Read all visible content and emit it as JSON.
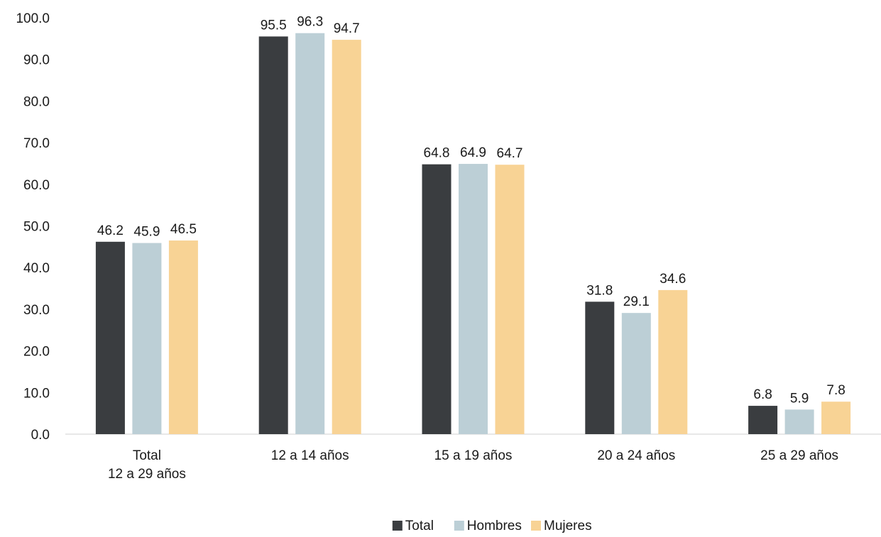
{
  "chart_data": {
    "type": "bar",
    "categories": [
      [
        "Total",
        "12 a 29 años"
      ],
      [
        "12 a 14 años"
      ],
      [
        "15 a 19 años"
      ],
      [
        "20 a 24 años"
      ],
      [
        "25 a 29 años"
      ]
    ],
    "series": [
      {
        "name": "Total",
        "color": "#3a3d40",
        "values": [
          46.2,
          95.5,
          64.8,
          31.8,
          6.8
        ]
      },
      {
        "name": "Hombres",
        "color": "#bccfd6",
        "values": [
          45.9,
          96.3,
          64.9,
          29.1,
          5.9
        ]
      },
      {
        "name": "Mujeres",
        "color": "#f8d395",
        "values": [
          46.5,
          94.7,
          64.7,
          34.6,
          7.8
        ]
      }
    ],
    "ylim": [
      0,
      100
    ],
    "yticks": [
      "0.0",
      "10.0",
      "20.0",
      "30.0",
      "40.0",
      "50.0",
      "60.0",
      "70.0",
      "80.0",
      "90.0",
      "100.0"
    ],
    "grid": false,
    "legend": "bottom-center"
  }
}
